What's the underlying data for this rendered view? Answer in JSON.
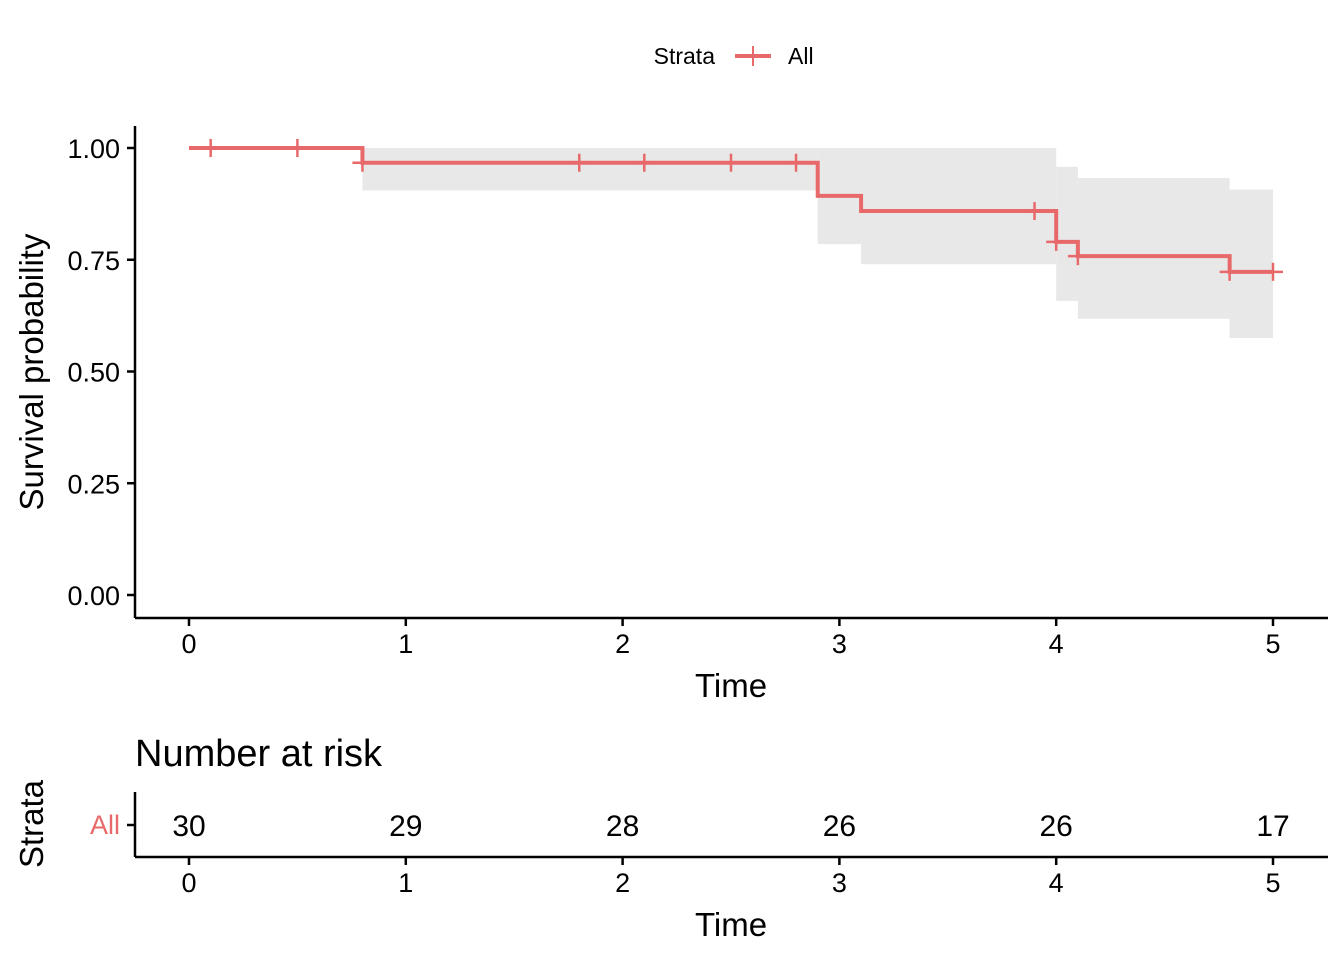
{
  "chart_data": [
    {
      "type": "line",
      "subtype": "kaplan-meier",
      "xlabel": "Time",
      "ylabel": "Survival probability",
      "xlim": [
        0,
        5
      ],
      "ylim": [
        0,
        1
      ],
      "x_ticks": [
        0,
        1,
        2,
        3,
        4,
        5
      ],
      "y_ticks": [
        "0.00",
        "0.25",
        "0.50",
        "0.75",
        "1.00"
      ],
      "y_tick_values": [
        0,
        0.25,
        0.5,
        0.75,
        1.0
      ],
      "grid": false,
      "legend": {
        "title": "Strata",
        "position": "top",
        "entries": [
          "All"
        ]
      },
      "series": [
        {
          "name": "All",
          "color": "#E8696A",
          "steps": [
            {
              "x": 0.0,
              "y": 1.0
            },
            {
              "x": 0.8,
              "y": 0.967
            },
            {
              "x": 2.9,
              "y": 0.893
            },
            {
              "x": 3.1,
              "y": 0.859
            },
            {
              "x": 4.0,
              "y": 0.79
            },
            {
              "x": 4.1,
              "y": 0.758
            },
            {
              "x": 4.8,
              "y": 0.723
            }
          ],
          "end_x": 5.0,
          "confidence_band": {
            "color": "#E8E8E8",
            "segments": [
              {
                "x0": 0.8,
                "x1": 2.9,
                "lower": 0.905,
                "upper": 1.0
              },
              {
                "x0": 2.9,
                "x1": 3.1,
                "lower": 0.785,
                "upper": 1.0
              },
              {
                "x0": 3.1,
                "x1": 4.0,
                "lower": 0.74,
                "upper": 1.0
              },
              {
                "x0": 4.0,
                "x1": 4.1,
                "lower": 0.658,
                "upper": 0.958
              },
              {
                "x0": 4.1,
                "x1": 4.8,
                "lower": 0.618,
                "upper": 0.933
              },
              {
                "x0": 4.8,
                "x1": 5.0,
                "lower": 0.575,
                "upper": 0.907
              }
            ]
          },
          "censor_times": [
            0.1,
            0.5,
            0.8,
            1.8,
            2.1,
            2.5,
            2.8,
            3.9,
            4.0,
            4.1,
            4.8,
            5.0
          ]
        }
      ]
    },
    {
      "type": "table",
      "title": "Number at risk",
      "xlabel": "Time",
      "ylabel": "Strata",
      "xlim": [
        0,
        5
      ],
      "x_ticks": [
        0,
        1,
        2,
        3,
        4,
        5
      ],
      "rows": [
        {
          "name": "All",
          "color": "#E8696A",
          "times": [
            0,
            1,
            2,
            3,
            4,
            5
          ],
          "values": [
            30,
            29,
            28,
            26,
            26,
            17
          ]
        }
      ]
    }
  ]
}
